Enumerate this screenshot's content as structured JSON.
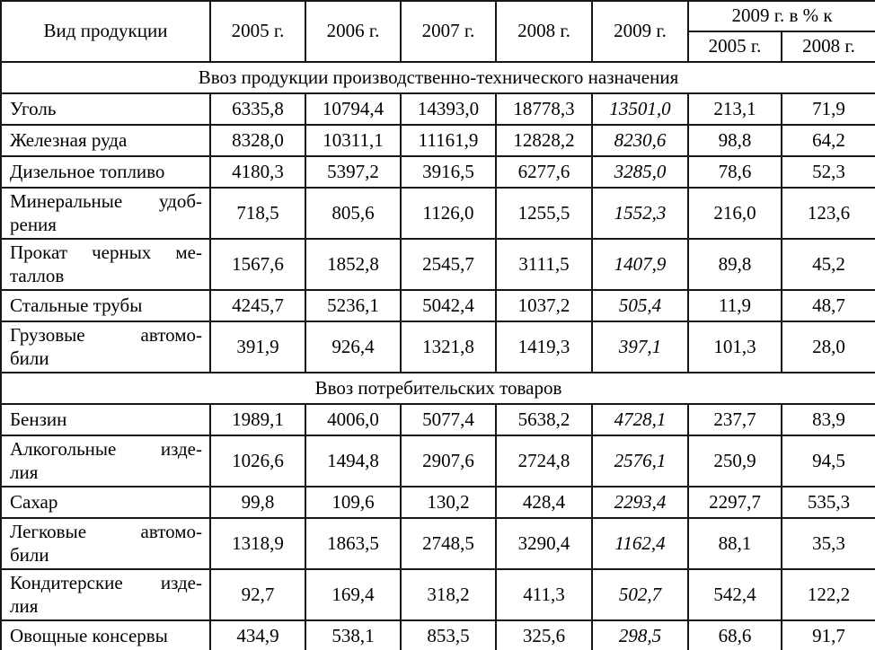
{
  "table": {
    "header": {
      "product_col": "Вид продукции",
      "year_cols": [
        "2005 г.",
        "2006 г.",
        "2007 г.",
        "2008 г.",
        "2009 г."
      ],
      "pct_group_label": "2009 г. в % к",
      "pct_cols": [
        "2005 г.",
        "2008 г."
      ]
    },
    "sections": [
      {
        "title": "Ввоз продукции производственно-технического назначения",
        "rows": [
          {
            "name": "Уголь",
            "values": [
              "6335,8",
              "10794,4",
              "14393,0",
              "18778,3",
              "13501,0",
              "213,1",
              "71,9"
            ]
          },
          {
            "name": "Железная руда",
            "values": [
              "8328,0",
              "10311,1",
              "11161,9",
              "12828,2",
              "8230,6",
              "98,8",
              "64,2"
            ]
          },
          {
            "name": "Дизельное топливо",
            "values": [
              "4180,3",
              "5397,2",
              "3916,5",
              "6277,6",
              "3285,0",
              "78,6",
              "52,3"
            ]
          },
          {
            "name": "Минеральные удоб-\nрения",
            "values": [
              "718,5",
              "805,6",
              "1126,0",
              "1255,5",
              "1552,3",
              "216,0",
              "123,6"
            ]
          },
          {
            "name": "Прокат черных ме-\nталлов",
            "values": [
              "1567,6",
              "1852,8",
              "2545,7",
              "3111,5",
              "1407,9",
              "89,8",
              "45,2"
            ]
          },
          {
            "name": "Стальные трубы",
            "values": [
              "4245,7",
              "5236,1",
              "5042,4",
              "1037,2",
              "505,4",
              "11,9",
              "48,7"
            ]
          },
          {
            "name": "Грузовые автомо-\nбили",
            "values": [
              "391,9",
              "926,4",
              "1321,8",
              "1419,3",
              "397,1",
              "101,3",
              "28,0"
            ]
          }
        ]
      },
      {
        "title": "Ввоз потребительских товаров",
        "rows": [
          {
            "name": "Бензин",
            "values": [
              "1989,1",
              "4006,0",
              "5077,4",
              "5638,2",
              "4728,1",
              "237,7",
              "83,9"
            ]
          },
          {
            "name": "Алкогольные изде-\nлия",
            "values": [
              "1026,6",
              "1494,8",
              "2907,6",
              "2724,8",
              "2576,1",
              "250,9",
              "94,5"
            ]
          },
          {
            "name": "Сахар",
            "values": [
              "99,8",
              "109,6",
              "130,2",
              "428,4",
              "2293,4",
              "2297,7",
              "535,3"
            ]
          },
          {
            "name": "Легковые автомо-\nбили",
            "values": [
              "1318,9",
              "1863,5",
              "2748,5",
              "3290,4",
              "1162,4",
              "88,1",
              "35,3"
            ]
          },
          {
            "name": "Кондитерские изде-\nлия",
            "values": [
              "92,7",
              "169,4",
              "318,2",
              "411,3",
              "502,7",
              "542,4",
              "122,2"
            ]
          },
          {
            "name": "Овощные консервы",
            "values": [
              "434,9",
              "538,1",
              "853,5",
              "325,6",
              "298,5",
              "68,6",
              "91,7"
            ]
          }
        ]
      }
    ],
    "italic_value_column_index": 4
  },
  "colors": {
    "border": "#161616",
    "text": "#000000",
    "background": "#ffffff"
  }
}
